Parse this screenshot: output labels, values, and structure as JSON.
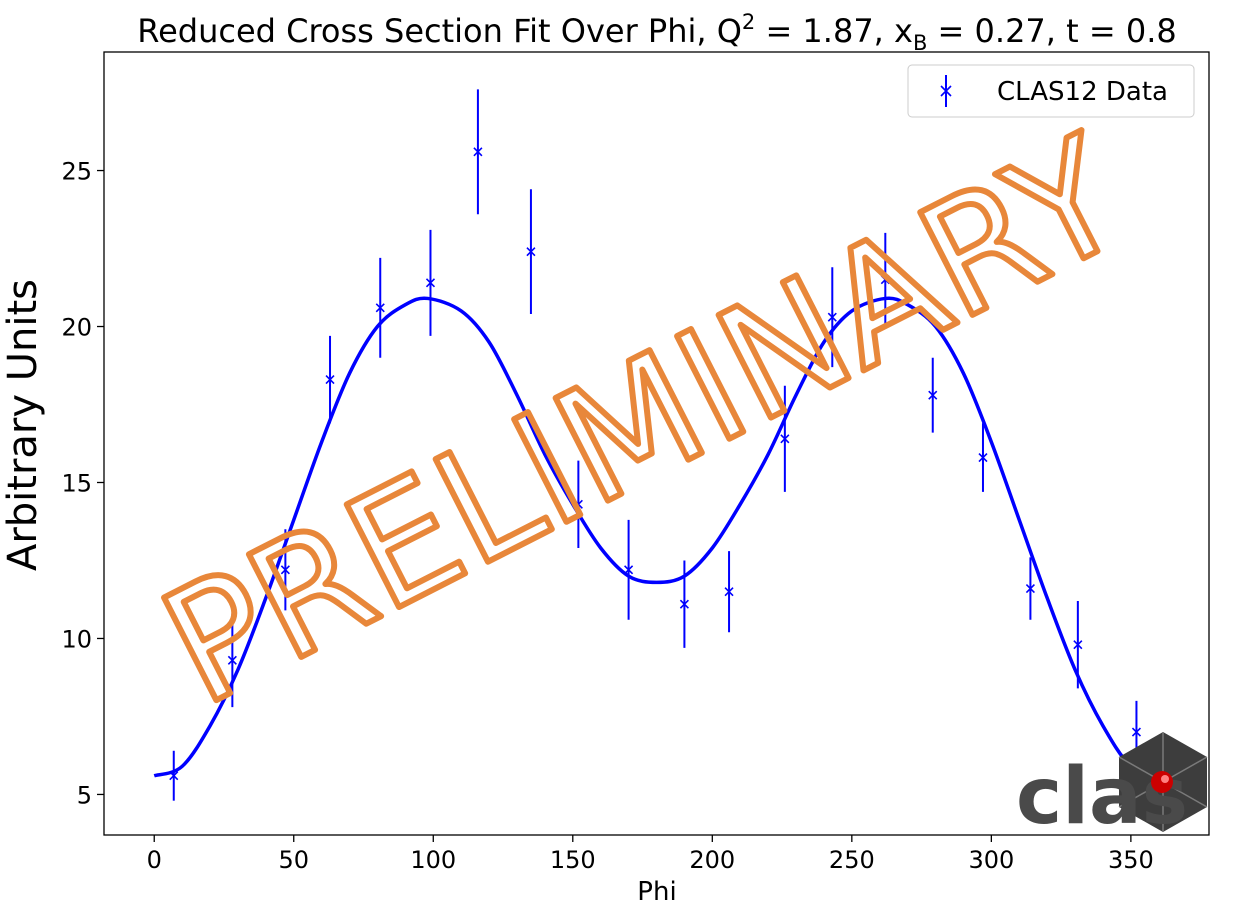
{
  "chart_data": {
    "type": "scatter",
    "title_parts": {
      "pre": "Reduced Cross Section Fit Over Phi, Q",
      "sup": "2",
      "mid1": " = 1.87, x",
      "sub": "B",
      "mid2": " = 0.27, t = 0.8"
    },
    "xlabel": "Phi",
    "ylabel": "Arbitrary Units",
    "xlim": [
      -18,
      378
    ],
    "ylim": [
      3.7,
      28.8
    ],
    "xticks": [
      0,
      50,
      100,
      150,
      200,
      250,
      300,
      350
    ],
    "yticks": [
      5,
      10,
      15,
      20,
      25
    ],
    "grid": false,
    "legend": {
      "position": "top-right",
      "entries": [
        "CLAS12 Data"
      ]
    },
    "series": [
      {
        "name": "CLAS12 Data",
        "style": "errorbar",
        "color": "#0000ff",
        "points": [
          {
            "x": 7,
            "y": 5.6,
            "err": 0.8
          },
          {
            "x": 28,
            "y": 9.3,
            "err": 1.5
          },
          {
            "x": 47,
            "y": 12.2,
            "err": 1.3
          },
          {
            "x": 63,
            "y": 18.3,
            "err": 1.4
          },
          {
            "x": 81,
            "y": 20.6,
            "err": 1.6
          },
          {
            "x": 99,
            "y": 21.4,
            "err": 1.7
          },
          {
            "x": 116,
            "y": 25.6,
            "err": 2.0
          },
          {
            "x": 135,
            "y": 22.4,
            "err": 2.0
          },
          {
            "x": 152,
            "y": 14.3,
            "err": 1.4
          },
          {
            "x": 170,
            "y": 12.2,
            "err": 1.6
          },
          {
            "x": 190,
            "y": 11.1,
            "err": 1.4
          },
          {
            "x": 206,
            "y": 11.5,
            "err": 1.3
          },
          {
            "x": 226,
            "y": 16.4,
            "err": 1.7
          },
          {
            "x": 243,
            "y": 20.3,
            "err": 1.6
          },
          {
            "x": 262,
            "y": 21.5,
            "err": 1.5
          },
          {
            "x": 279,
            "y": 17.8,
            "err": 1.2
          },
          {
            "x": 297,
            "y": 15.8,
            "err": 1.1
          },
          {
            "x": 314,
            "y": 11.6,
            "err": 1.0
          },
          {
            "x": 331,
            "y": 9.8,
            "err": 1.4
          },
          {
            "x": 352,
            "y": 7.0,
            "err": 1.0
          }
        ]
      },
      {
        "name": "fit",
        "style": "line",
        "color": "#0000ff",
        "x": [
          0,
          10,
          20,
          30,
          40,
          50,
          60,
          70,
          80,
          90,
          98,
          110,
          120,
          130,
          140,
          150,
          160,
          170,
          180,
          190,
          200,
          210,
          220,
          230,
          240,
          250,
          262,
          270,
          280,
          290,
          300,
          310,
          320,
          330,
          340,
          350,
          360
        ],
        "y": [
          5.6,
          5.9,
          7.2,
          9.0,
          11.3,
          13.8,
          16.3,
          18.5,
          20.0,
          20.7,
          20.9,
          20.5,
          19.5,
          17.8,
          15.9,
          14.3,
          12.9,
          12.0,
          11.8,
          12.0,
          12.9,
          14.3,
          15.9,
          17.8,
          19.5,
          20.5,
          20.9,
          20.7,
          20.0,
          18.5,
          16.3,
          13.8,
          11.3,
          9.0,
          7.2,
          5.9,
          5.6
        ]
      }
    ]
  },
  "watermark": {
    "text": "PRELIMINARY",
    "color": "#e8873a"
  },
  "logo": {
    "text": "clas",
    "color": "#4a4a4a",
    "accent": "#cc0000"
  }
}
